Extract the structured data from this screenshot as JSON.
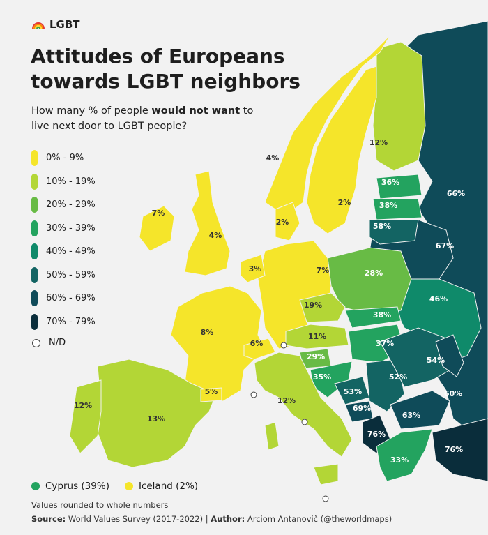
{
  "brand": {
    "label": "LGBT",
    "icon": "rainbow-icon"
  },
  "title_line1": "Attitudes of Europeans",
  "title_line2": "towards LGBT neighbors",
  "subtitle": {
    "part1": "How many % of people ",
    "bold": "would not want",
    "part2": " to live next door to LGBT people?"
  },
  "legend": [
    {
      "label": "0% - 9%",
      "color": "#f5e52a"
    },
    {
      "label": "10% - 19%",
      "color": "#b3d636"
    },
    {
      "label": "20% - 29%",
      "color": "#68bb45"
    },
    {
      "label": "30% - 39%",
      "color": "#23a35f"
    },
    {
      "label": "40% - 49%",
      "color": "#0f8a6a"
    },
    {
      "label": "50% - 59%",
      "color": "#136463"
    },
    {
      "label": "60% - 69%",
      "color": "#0f4b59"
    },
    {
      "label": "70% - 79%",
      "color": "#0a2d3b"
    }
  ],
  "nd_label": "N/D",
  "cyprus": {
    "label": "Cyprus (39%)",
    "color": "#23a35f"
  },
  "iceland": {
    "label": "Iceland (2%)",
    "color": "#f5e52a"
  },
  "footnote": "Values rounded to whole numbers",
  "source": {
    "source_label": "Source:",
    "source_text": " World Values Survey (2017-2022) | ",
    "author_label": "Author:",
    "author_text": " Arciom Antanovič (@theworldmaps)"
  },
  "countries": [
    {
      "name": "russia",
      "value": "66%",
      "color": "#0f4b59"
    },
    {
      "name": "finland",
      "value": "12%",
      "color": "#b3d636"
    },
    {
      "name": "norway",
      "value": "4%",
      "color": "#f5e52a"
    },
    {
      "name": "sweden",
      "value": "2%",
      "color": "#f5e52a"
    },
    {
      "name": "estonia",
      "value": "36%",
      "color": "#23a35f"
    },
    {
      "name": "latvia",
      "value": "38%",
      "color": "#23a35f"
    },
    {
      "name": "lithuania",
      "value": "58%",
      "color": "#136463"
    },
    {
      "name": "belarus",
      "value": "67%",
      "color": "#0f4b59"
    },
    {
      "name": "ukraine",
      "value": "46%",
      "color": "#0f8a6a"
    },
    {
      "name": "poland",
      "value": "28%",
      "color": "#68bb45"
    },
    {
      "name": "germany",
      "value": "7%",
      "color": "#f5e52a"
    },
    {
      "name": "denmark",
      "value": "2%",
      "color": "#f5e52a"
    },
    {
      "name": "netherlands",
      "value": "3%",
      "color": "#f5e52a"
    },
    {
      "name": "great-britain",
      "value": "4%",
      "color": "#f5e52a"
    },
    {
      "name": "ireland",
      "value": "7%",
      "color": "#f5e52a"
    },
    {
      "name": "france",
      "value": "8%",
      "color": "#f5e52a"
    },
    {
      "name": "switzerland",
      "value": "6%",
      "color": "#f5e52a"
    },
    {
      "name": "czechia",
      "value": "19%",
      "color": "#b3d636"
    },
    {
      "name": "slovakia",
      "value": "38%",
      "color": "#23a35f"
    },
    {
      "name": "austria",
      "value": "11%",
      "color": "#b3d636"
    },
    {
      "name": "hungary",
      "value": "37%",
      "color": "#23a35f"
    },
    {
      "name": "slovenia",
      "value": "29%",
      "color": "#68bb45"
    },
    {
      "name": "croatia",
      "value": "35%",
      "color": "#23a35f"
    },
    {
      "name": "bosnia",
      "value": "53%",
      "color": "#136463"
    },
    {
      "name": "serbia",
      "value": "52%",
      "color": "#136463"
    },
    {
      "name": "romania",
      "value": "54%",
      "color": "#136463"
    },
    {
      "name": "moldova",
      "value": "60%",
      "color": "#0f4b59"
    },
    {
      "name": "montenegro",
      "value": "69%",
      "color": "#0f4b59"
    },
    {
      "name": "bulgaria",
      "value": "63%",
      "color": "#0f4b59"
    },
    {
      "name": "albania",
      "value": "76%",
      "color": "#0a2d3b"
    },
    {
      "name": "greece",
      "value": "33%",
      "color": "#23a35f"
    },
    {
      "name": "turkey",
      "value": "76%",
      "color": "#0a2d3b"
    },
    {
      "name": "italy",
      "value": "12%",
      "color": "#b3d636"
    },
    {
      "name": "spain",
      "value": "13%",
      "color": "#b3d636"
    },
    {
      "name": "portugal",
      "value": "12%",
      "color": "#b3d636"
    },
    {
      "name": "andorra",
      "value": "5%",
      "color": "#f5e52a"
    }
  ],
  "nd_color": "#ffffff"
}
